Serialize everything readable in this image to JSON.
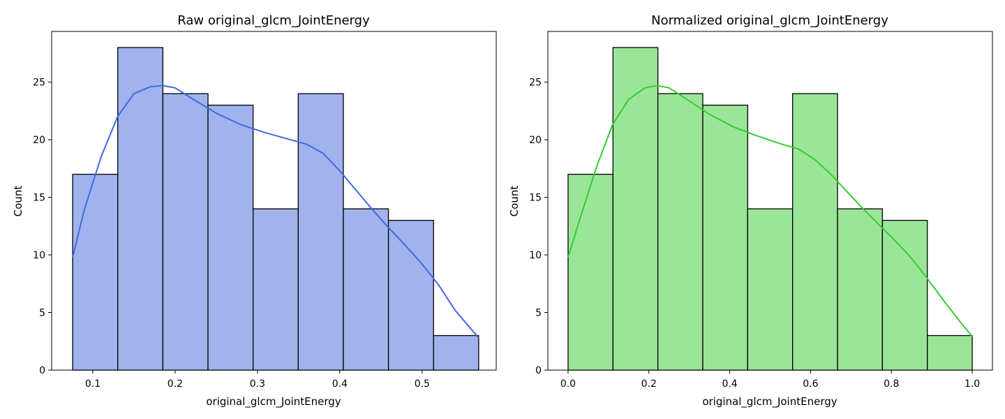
{
  "chart_data": [
    {
      "type": "bar",
      "title": "Raw original_glcm_JointEnergy",
      "xlabel": "original_glcm_JointEnergy",
      "ylabel": "Count",
      "xlim": [
        0.05,
        0.59
      ],
      "ylim": [
        0,
        29.4
      ],
      "xticks": [
        0.1,
        0.2,
        0.3,
        0.4,
        0.5
      ],
      "xtick_labels": [
        "0.1",
        "0.2",
        "0.3",
        "0.4",
        "0.5"
      ],
      "yticks": [
        0,
        5,
        10,
        15,
        20,
        25
      ],
      "ytick_labels": [
        "0",
        "5",
        "10",
        "15",
        "20",
        "25"
      ],
      "bin_edges": [
        0.0755,
        0.1303,
        0.1851,
        0.2399,
        0.2947,
        0.3495,
        0.4043,
        0.4591,
        0.5139,
        0.5687
      ],
      "values": [
        17,
        28,
        24,
        23,
        14,
        24,
        14,
        13,
        3
      ],
      "kde": {
        "x": [
          0.0755,
          0.09,
          0.11,
          0.13,
          0.15,
          0.17,
          0.185,
          0.2,
          0.22,
          0.25,
          0.28,
          0.31,
          0.34,
          0.36,
          0.38,
          0.4,
          0.42,
          0.44,
          0.46,
          0.48,
          0.5,
          0.52,
          0.54,
          0.5687
        ],
        "y": [
          9.8,
          14.0,
          18.5,
          22.0,
          24.0,
          24.6,
          24.7,
          24.5,
          23.6,
          22.3,
          21.3,
          20.6,
          20.0,
          19.6,
          18.8,
          17.3,
          15.6,
          13.9,
          12.3,
          10.8,
          9.2,
          7.4,
          5.2,
          2.8
        ]
      },
      "bar_color": "#A0B3ED",
      "line_color": "#4169E1",
      "grid": false
    },
    {
      "type": "bar",
      "title": "Normalized original_glcm_JointEnergy",
      "xlabel": "original_glcm_JointEnergy",
      "ylabel": "Count",
      "xlim": [
        -0.05,
        1.05
      ],
      "ylim": [
        0,
        29.4
      ],
      "xticks": [
        0.0,
        0.2,
        0.4,
        0.6,
        0.8,
        1.0
      ],
      "xtick_labels": [
        "0.0",
        "0.2",
        "0.4",
        "0.6",
        "0.8",
        "1.0"
      ],
      "yticks": [
        0,
        5,
        10,
        15,
        20,
        25
      ],
      "ytick_labels": [
        "0",
        "5",
        "10",
        "15",
        "20",
        "25"
      ],
      "bin_edges": [
        0.0,
        0.1111,
        0.2222,
        0.3333,
        0.4444,
        0.5556,
        0.6667,
        0.7778,
        0.8889,
        1.0
      ],
      "values": [
        17,
        28,
        24,
        23,
        14,
        24,
        14,
        13,
        3
      ],
      "kde": {
        "x": [
          0.0,
          0.03,
          0.07,
          0.11,
          0.15,
          0.19,
          0.22,
          0.25,
          0.29,
          0.35,
          0.41,
          0.47,
          0.53,
          0.57,
          0.61,
          0.65,
          0.69,
          0.73,
          0.77,
          0.81,
          0.85,
          0.89,
          0.93,
          0.97,
          1.0
        ],
        "y": [
          9.8,
          13.2,
          17.6,
          21.3,
          23.5,
          24.5,
          24.7,
          24.5,
          23.6,
          22.2,
          21.1,
          20.3,
          19.6,
          19.2,
          18.3,
          17.0,
          15.5,
          14.0,
          12.6,
          11.2,
          9.7,
          7.9,
          6.0,
          4.2,
          2.9
        ]
      },
      "bar_color": "#9BE598",
      "line_color": "#32CD32",
      "grid": false
    }
  ]
}
